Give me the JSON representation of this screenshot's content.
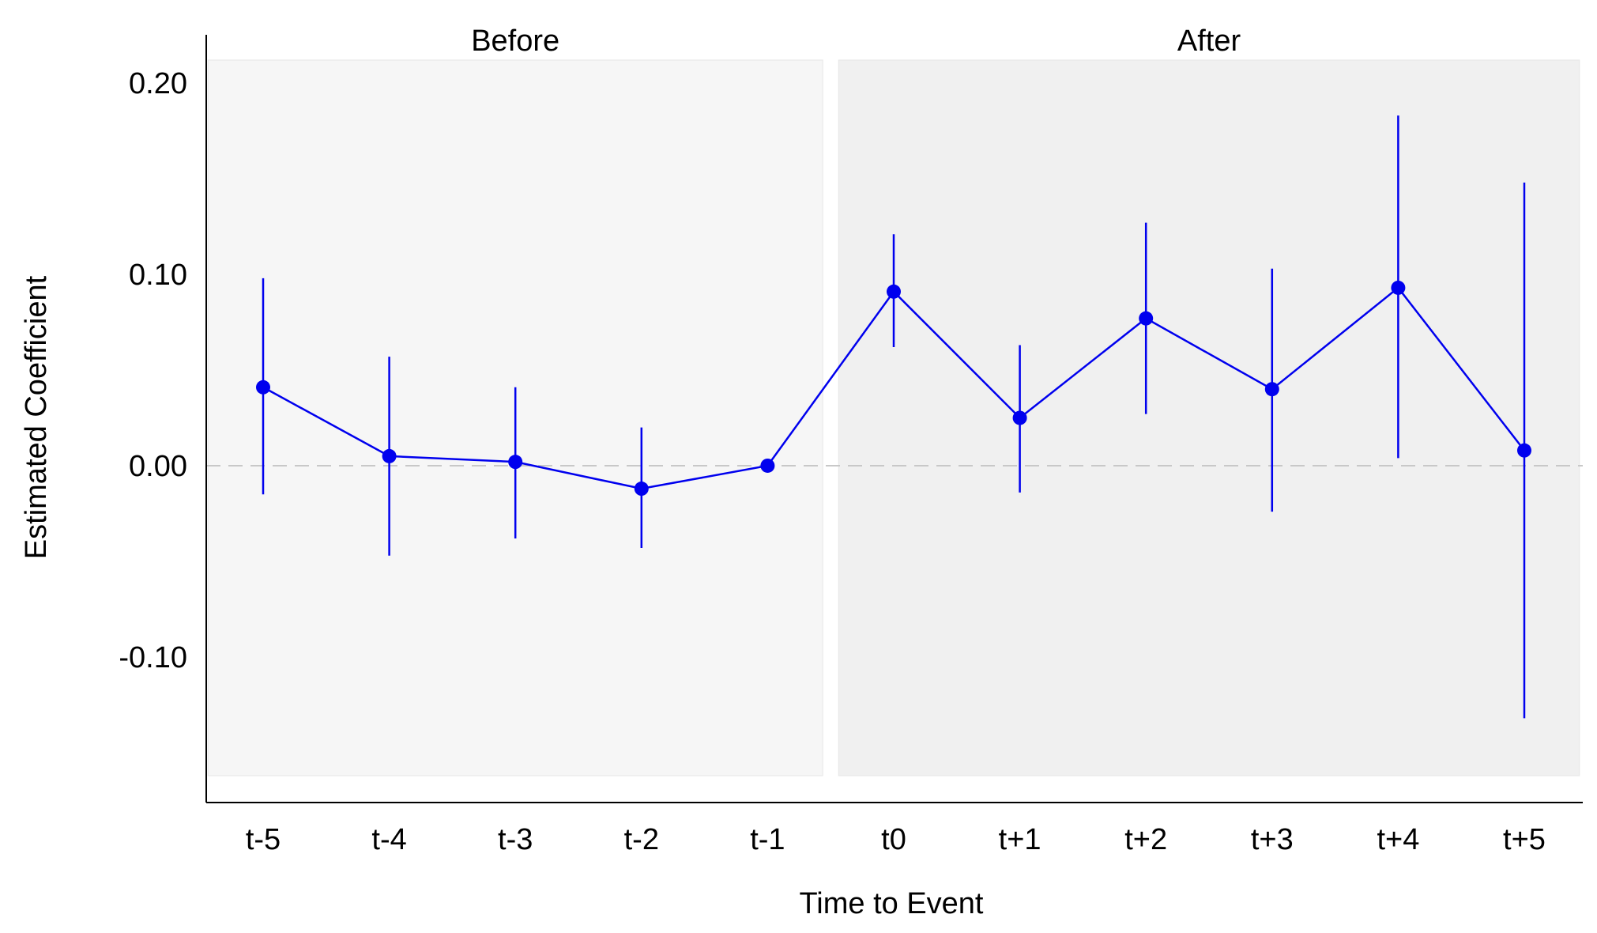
{
  "chart_data": {
    "type": "line",
    "title": "",
    "xlabel": "Time to Event",
    "ylabel": "Estimated Coefficient",
    "categories": [
      "t-5",
      "t-4",
      "t-3",
      "t-2",
      "t-1",
      "t0",
      "t+1",
      "t+2",
      "t+3",
      "t+4",
      "t+5"
    ],
    "estimates": [
      0.041,
      0.005,
      0.002,
      -0.012,
      0.0,
      0.091,
      0.025,
      0.077,
      0.04,
      0.093,
      0.008
    ],
    "ci_lower": [
      -0.015,
      -0.047,
      -0.038,
      -0.043,
      0.0,
      0.062,
      -0.014,
      0.027,
      -0.024,
      0.004,
      -0.132
    ],
    "ci_upper": [
      0.098,
      0.057,
      0.041,
      0.02,
      0.0,
      0.121,
      0.063,
      0.127,
      0.103,
      0.183,
      0.148
    ],
    "yticks": [
      "0.20",
      "0.10",
      "0.00",
      "-0.10"
    ],
    "ytick_values": [
      0.2,
      0.1,
      0.0,
      -0.1
    ],
    "ylim": [
      -0.162,
      0.212
    ],
    "reference_line": 0,
    "panels": [
      {
        "label": "Before",
        "from": "t-5",
        "to": "t-1",
        "color": "#f6f6f6"
      },
      {
        "label": "After",
        "from": "t0",
        "to": "t+5",
        "color": "#f0f0f0"
      }
    ],
    "series_color": "#0000ee",
    "grid": false
  }
}
